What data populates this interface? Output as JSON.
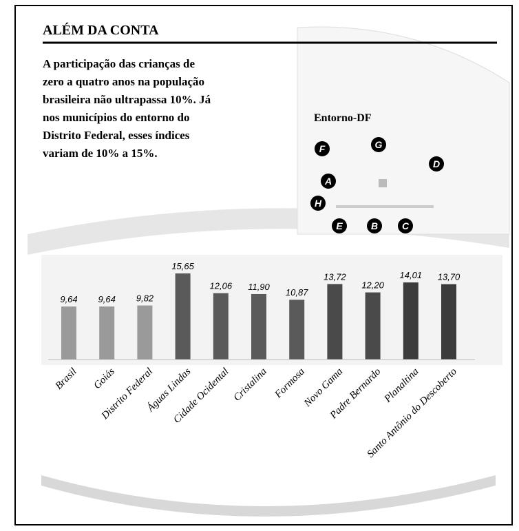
{
  "chart_data": {
    "type": "bar",
    "title": "ALÉM DA CONTA",
    "subtitle": [
      "A participação das crianças de",
      "zero a quatro anos na população",
      "brasileira não ultrapassa 10%. Já",
      "nos municípios do entorno do",
      "Distrito Federal, esses índices",
      "variam de 10% a 15%."
    ],
    "map": {
      "title": "Entorno-DF",
      "markers": [
        "F",
        "G",
        "D",
        "A",
        "H",
        "E",
        "B",
        "C"
      ]
    },
    "categories": [
      "Brasil",
      "Goiás",
      "Distrito Federal",
      "Águas Lindas",
      "Cidade Ocidental",
      "Cristalina",
      "Formosa",
      "Novo Gama",
      "Padre Bernardo",
      "Planaltina",
      "Santo Antônio do Descoberto"
    ],
    "values": [
      9.64,
      9.64,
      9.82,
      15.65,
      12.06,
      11.9,
      10.87,
      13.72,
      12.2,
      14.01,
      13.7
    ],
    "value_labels": [
      "9,64",
      "9,64",
      "9,82",
      "15,65",
      "12,06",
      "11,90",
      "10,87",
      "13,72",
      "12,20",
      "14,01",
      "13,70"
    ],
    "colors": [
      "#9a9a9a",
      "#9a9a9a",
      "#9a9a9a",
      "#5a5a5a",
      "#5a5a5a",
      "#5a5a5a",
      "#5a5a5a",
      "#4a4a4a",
      "#4a4a4a",
      "#3c3c3c",
      "#3c3c3c"
    ]
  }
}
